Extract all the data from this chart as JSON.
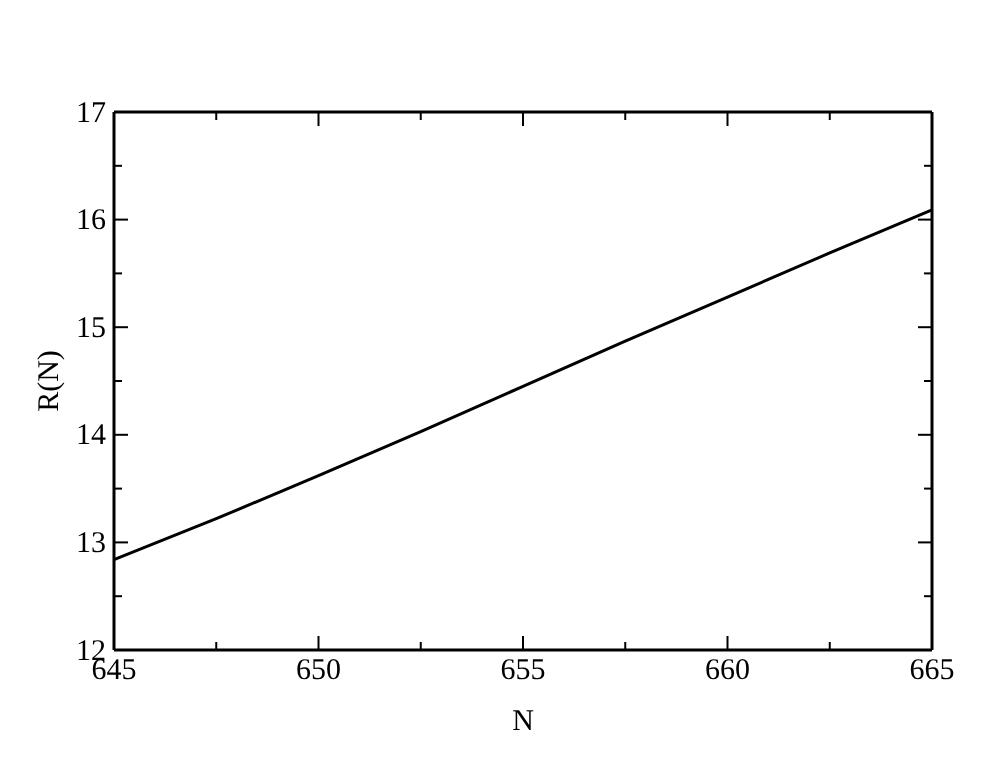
{
  "chart_data": {
    "type": "line",
    "xlabel": "N",
    "ylabel": "R(N)",
    "x": [
      645,
      647.5,
      650,
      652.5,
      655,
      657.5,
      660,
      662.5,
      665
    ],
    "series": [
      {
        "color": "#000000",
        "values": [
          12.84,
          13.22,
          13.62,
          14.03,
          14.45,
          14.87,
          15.28,
          15.69,
          16.09
        ]
      }
    ],
    "xlim": [
      645,
      665
    ],
    "ylim": [
      12,
      17
    ],
    "xticks": [
      645,
      {
        "value": 647.5,
        "label": null
      },
      650,
      {
        "value": 652.5,
        "label": null
      },
      655,
      {
        "value": 657.5,
        "label": null
      },
      660,
      {
        "value": 662.5,
        "label": null
      },
      665
    ],
    "yticks": [
      12,
      {
        "value": 12.5,
        "label": null
      },
      13,
      {
        "value": 13.5,
        "label": null
      },
      14,
      {
        "value": 14.5,
        "label": null
      },
      15,
      {
        "value": 15.5,
        "label": null
      },
      16,
      {
        "value": 16.5,
        "label": null
      },
      17
    ],
    "grid": false,
    "marker": "none",
    "line_style": "solid"
  }
}
